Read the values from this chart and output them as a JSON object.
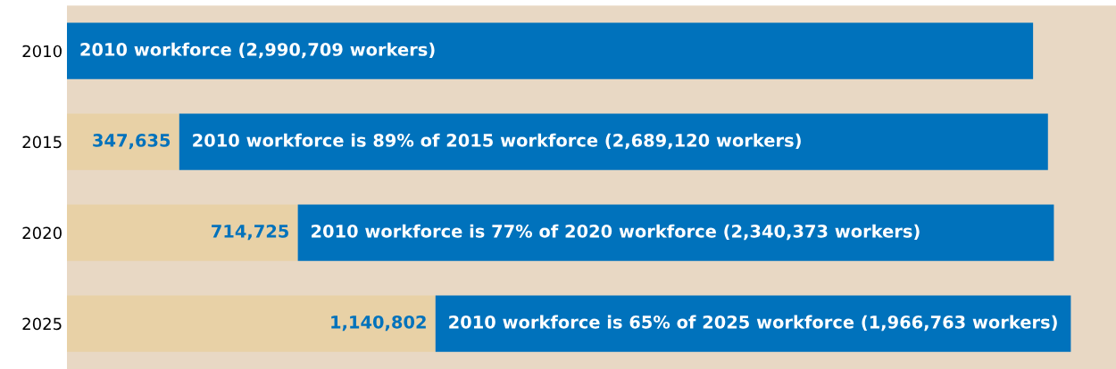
{
  "chart_data": {
    "type": "bar",
    "orientation": "horizontal",
    "stacked": true,
    "categories": [
      "2010",
      "2015",
      "2020",
      "2025"
    ],
    "series": [
      {
        "color": "#e8d1a6",
        "values": [
          null,
          347635,
          714725,
          1140802
        ],
        "value_labels": [
          null,
          "347,635",
          "714,725",
          "1,140,802"
        ]
      },
      {
        "color": "#0072bc",
        "values": [
          2990709,
          2689120,
          2340373,
          1966763
        ],
        "value_labels": [
          "2010 workforce (2,990,709 workers)",
          "2010 workforce is 89% of 2015 workforce (2,689,120 workers)",
          "2010 workforce is 77% of 2020 workforce (2,340,373 workers)",
          "2010 workforce is 65% of 2025 workforce (1,966,763 workers)"
        ]
      }
    ],
    "tick_labels": "y",
    "grid": false,
    "legend": false
  }
}
